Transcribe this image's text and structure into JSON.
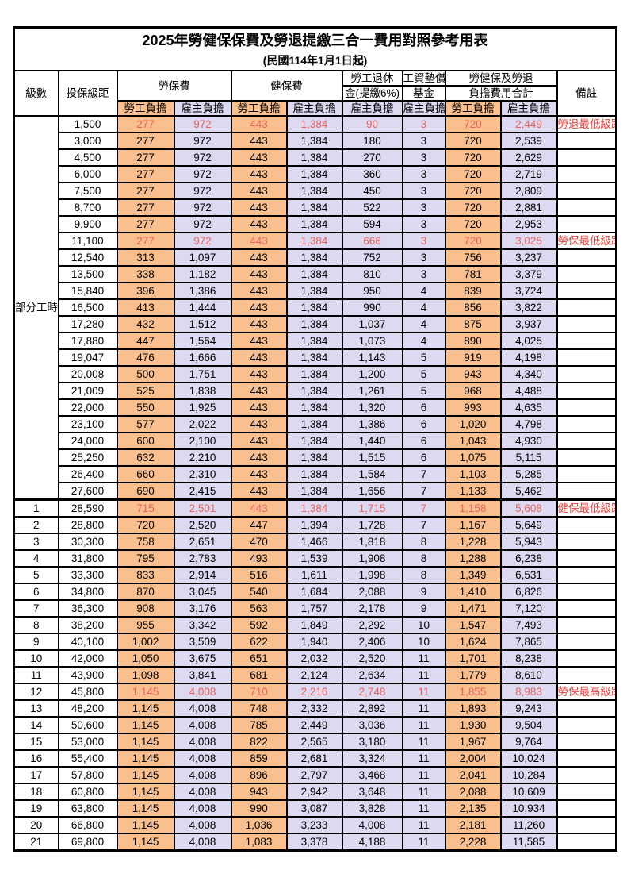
{
  "title": "2025年勞健保保費及勞退提繳三合一費用對照參考用表",
  "subtitle": "(民國114年1月1日起)",
  "colors": {
    "employee_bg": "#FABF8F",
    "employer_bg": "#DDD9F1",
    "highlight_text": "#E8625D",
    "note_text": "#E0413B"
  },
  "header": {
    "level": "級數",
    "salary": "投保級距",
    "labor_group": "勞保費",
    "health_group": "健保費",
    "pension_line1": "勞工退休",
    "pension_line2": "金(提繳6%)",
    "wage_fund_line1": "工資墊償",
    "wage_fund_line2": "基金",
    "total_line1": "勞健保及勞退",
    "total_line2": "負擔費用合計",
    "employee": "勞工負擔",
    "employer": "雇主負擔",
    "note": "備註"
  },
  "part_time_label": "部分工時",
  "rows": [
    {
      "level": "",
      "salary": "1,500",
      "labor_emp": "277",
      "labor_er": "972",
      "health_emp": "443",
      "health_er": "1,384",
      "pension_er": "90",
      "fund_er": "3",
      "total_emp": "720",
      "total_er": "2,449",
      "note": "勞退最低級距",
      "red": true,
      "bold": false
    },
    {
      "level": "",
      "salary": "3,000",
      "labor_emp": "277",
      "labor_er": "972",
      "health_emp": "443",
      "health_er": "1,384",
      "pension_er": "180",
      "fund_er": "3",
      "total_emp": "720",
      "total_er": "2,539",
      "note": "",
      "red": false,
      "bold": false
    },
    {
      "level": "",
      "salary": "4,500",
      "labor_emp": "277",
      "labor_er": "972",
      "health_emp": "443",
      "health_er": "1,384",
      "pension_er": "270",
      "fund_er": "3",
      "total_emp": "720",
      "total_er": "2,629",
      "note": "",
      "red": false,
      "bold": false
    },
    {
      "level": "",
      "salary": "6,000",
      "labor_emp": "277",
      "labor_er": "972",
      "health_emp": "443",
      "health_er": "1,384",
      "pension_er": "360",
      "fund_er": "3",
      "total_emp": "720",
      "total_er": "2,719",
      "note": "",
      "red": false,
      "bold": false
    },
    {
      "level": "",
      "salary": "7,500",
      "labor_emp": "277",
      "labor_er": "972",
      "health_emp": "443",
      "health_er": "1,384",
      "pension_er": "450",
      "fund_er": "3",
      "total_emp": "720",
      "total_er": "2,809",
      "note": "",
      "red": false,
      "bold": false
    },
    {
      "level": "",
      "salary": "8,700",
      "labor_emp": "277",
      "labor_er": "972",
      "health_emp": "443",
      "health_er": "1,384",
      "pension_er": "522",
      "fund_er": "3",
      "total_emp": "720",
      "total_er": "2,881",
      "note": "",
      "red": false,
      "bold": false
    },
    {
      "level": "",
      "salary": "9,900",
      "labor_emp": "277",
      "labor_er": "972",
      "health_emp": "443",
      "health_er": "1,384",
      "pension_er": "594",
      "fund_er": "3",
      "total_emp": "720",
      "total_er": "2,953",
      "note": "",
      "red": false,
      "bold": false
    },
    {
      "level": "",
      "salary": "11,100",
      "labor_emp": "277",
      "labor_er": "972",
      "health_emp": "443",
      "health_er": "1,384",
      "pension_er": "666",
      "fund_er": "3",
      "total_emp": "720",
      "total_er": "3,025",
      "note": "勞保最低級距",
      "red": true,
      "bold": false
    },
    {
      "level": "",
      "salary": "12,540",
      "labor_emp": "313",
      "labor_er": "1,097",
      "health_emp": "443",
      "health_er": "1,384",
      "pension_er": "752",
      "fund_er": "3",
      "total_emp": "756",
      "total_er": "3,237",
      "note": "",
      "red": false,
      "bold": false
    },
    {
      "level": "",
      "salary": "13,500",
      "labor_emp": "338",
      "labor_er": "1,182",
      "health_emp": "443",
      "health_er": "1,384",
      "pension_er": "810",
      "fund_er": "3",
      "total_emp": "781",
      "total_er": "3,379",
      "note": "",
      "red": false,
      "bold": false
    },
    {
      "level": "",
      "salary": "15,840",
      "labor_emp": "396",
      "labor_er": "1,386",
      "health_emp": "443",
      "health_er": "1,384",
      "pension_er": "950",
      "fund_er": "4",
      "total_emp": "839",
      "total_er": "3,724",
      "note": "",
      "red": false,
      "bold": false
    },
    {
      "level": "",
      "salary": "16,500",
      "labor_emp": "413",
      "labor_er": "1,444",
      "health_emp": "443",
      "health_er": "1,384",
      "pension_er": "990",
      "fund_er": "4",
      "total_emp": "856",
      "total_er": "3,822",
      "note": "",
      "red": false,
      "bold": false
    },
    {
      "level": "",
      "salary": "17,280",
      "labor_emp": "432",
      "labor_er": "1,512",
      "health_emp": "443",
      "health_er": "1,384",
      "pension_er": "1,037",
      "fund_er": "4",
      "total_emp": "875",
      "total_er": "3,937",
      "note": "",
      "red": false,
      "bold": false
    },
    {
      "level": "",
      "salary": "17,880",
      "labor_emp": "447",
      "labor_er": "1,564",
      "health_emp": "443",
      "health_er": "1,384",
      "pension_er": "1,073",
      "fund_er": "4",
      "total_emp": "890",
      "total_er": "4,025",
      "note": "",
      "red": false,
      "bold": false
    },
    {
      "level": "",
      "salary": "19,047",
      "labor_emp": "476",
      "labor_er": "1,666",
      "health_emp": "443",
      "health_er": "1,384",
      "pension_er": "1,143",
      "fund_er": "5",
      "total_emp": "919",
      "total_er": "4,198",
      "note": "",
      "red": false,
      "bold": false
    },
    {
      "level": "",
      "salary": "20,008",
      "labor_emp": "500",
      "labor_er": "1,751",
      "health_emp": "443",
      "health_er": "1,384",
      "pension_er": "1,200",
      "fund_er": "5",
      "total_emp": "943",
      "total_er": "4,340",
      "note": "",
      "red": false,
      "bold": false
    },
    {
      "level": "",
      "salary": "21,009",
      "labor_emp": "525",
      "labor_er": "1,838",
      "health_emp": "443",
      "health_er": "1,384",
      "pension_er": "1,261",
      "fund_er": "5",
      "total_emp": "968",
      "total_er": "4,488",
      "note": "",
      "red": false,
      "bold": false
    },
    {
      "level": "",
      "salary": "22,000",
      "labor_emp": "550",
      "labor_er": "1,925",
      "health_emp": "443",
      "health_er": "1,384",
      "pension_er": "1,320",
      "fund_er": "6",
      "total_emp": "993",
      "total_er": "4,635",
      "note": "",
      "red": false,
      "bold": false
    },
    {
      "level": "",
      "salary": "23,100",
      "labor_emp": "577",
      "labor_er": "2,022",
      "health_emp": "443",
      "health_er": "1,384",
      "pension_er": "1,386",
      "fund_er": "6",
      "total_emp": "1,020",
      "total_er": "4,798",
      "note": "",
      "red": false,
      "bold": false
    },
    {
      "level": "",
      "salary": "24,000",
      "labor_emp": "600",
      "labor_er": "2,100",
      "health_emp": "443",
      "health_er": "1,384",
      "pension_er": "1,440",
      "fund_er": "6",
      "total_emp": "1,043",
      "total_er": "4,930",
      "note": "",
      "red": false,
      "bold": false
    },
    {
      "level": "",
      "salary": "25,250",
      "labor_emp": "632",
      "labor_er": "2,210",
      "health_emp": "443",
      "health_er": "1,384",
      "pension_er": "1,515",
      "fund_er": "6",
      "total_emp": "1,075",
      "total_er": "5,115",
      "note": "",
      "red": false,
      "bold": false
    },
    {
      "level": "",
      "salary": "26,400",
      "labor_emp": "660",
      "labor_er": "2,310",
      "health_emp": "443",
      "health_er": "1,384",
      "pension_er": "1,584",
      "fund_er": "7",
      "total_emp": "1,103",
      "total_er": "5,285",
      "note": "",
      "red": false,
      "bold": false
    },
    {
      "level": "",
      "salary": "27,600",
      "labor_emp": "690",
      "labor_er": "2,415",
      "health_emp": "443",
      "health_er": "1,384",
      "pension_er": "1,656",
      "fund_er": "7",
      "total_emp": "1,133",
      "total_er": "5,462",
      "note": "",
      "red": false,
      "bold": false
    },
    {
      "level": "1",
      "salary": "28,590",
      "labor_emp": "715",
      "labor_er": "2,501",
      "health_emp": "443",
      "health_er": "1,384",
      "pension_er": "1,715",
      "fund_er": "7",
      "total_emp": "1,158",
      "total_er": "5,608",
      "note": "健保最低級距",
      "red": true,
      "bold": true
    },
    {
      "level": "2",
      "salary": "28,800",
      "labor_emp": "720",
      "labor_er": "2,520",
      "health_emp": "447",
      "health_er": "1,394",
      "pension_er": "1,728",
      "fund_er": "7",
      "total_emp": "1,167",
      "total_er": "5,649",
      "note": "",
      "red": false,
      "bold": false
    },
    {
      "level": "3",
      "salary": "30,300",
      "labor_emp": "758",
      "labor_er": "2,651",
      "health_emp": "470",
      "health_er": "1,466",
      "pension_er": "1,818",
      "fund_er": "8",
      "total_emp": "1,228",
      "total_er": "5,943",
      "note": "",
      "red": false,
      "bold": false
    },
    {
      "level": "4",
      "salary": "31,800",
      "labor_emp": "795",
      "labor_er": "2,783",
      "health_emp": "493",
      "health_er": "1,539",
      "pension_er": "1,908",
      "fund_er": "8",
      "total_emp": "1,288",
      "total_er": "6,238",
      "note": "",
      "red": false,
      "bold": false
    },
    {
      "level": "5",
      "salary": "33,300",
      "labor_emp": "833",
      "labor_er": "2,914",
      "health_emp": "516",
      "health_er": "1,611",
      "pension_er": "1,998",
      "fund_er": "8",
      "total_emp": "1,349",
      "total_er": "6,531",
      "note": "",
      "red": false,
      "bold": false
    },
    {
      "level": "6",
      "salary": "34,800",
      "labor_emp": "870",
      "labor_er": "3,045",
      "health_emp": "540",
      "health_er": "1,684",
      "pension_er": "2,088",
      "fund_er": "9",
      "total_emp": "1,410",
      "total_er": "6,826",
      "note": "",
      "red": false,
      "bold": false
    },
    {
      "level": "7",
      "salary": "36,300",
      "labor_emp": "908",
      "labor_er": "3,176",
      "health_emp": "563",
      "health_er": "1,757",
      "pension_er": "2,178",
      "fund_er": "9",
      "total_emp": "1,471",
      "total_er": "7,120",
      "note": "",
      "red": false,
      "bold": false
    },
    {
      "level": "8",
      "salary": "38,200",
      "labor_emp": "955",
      "labor_er": "3,342",
      "health_emp": "592",
      "health_er": "1,849",
      "pension_er": "2,292",
      "fund_er": "10",
      "total_emp": "1,547",
      "total_er": "7,493",
      "note": "",
      "red": false,
      "bold": false
    },
    {
      "level": "9",
      "salary": "40,100",
      "labor_emp": "1,002",
      "labor_er": "3,509",
      "health_emp": "622",
      "health_er": "1,940",
      "pension_er": "2,406",
      "fund_er": "10",
      "total_emp": "1,624",
      "total_er": "7,865",
      "note": "",
      "red": false,
      "bold": false
    },
    {
      "level": "10",
      "salary": "42,000",
      "labor_emp": "1,050",
      "labor_er": "3,675",
      "health_emp": "651",
      "health_er": "2,032",
      "pension_er": "2,520",
      "fund_er": "11",
      "total_emp": "1,701",
      "total_er": "8,238",
      "note": "",
      "red": false,
      "bold": false
    },
    {
      "level": "11",
      "salary": "43,900",
      "labor_emp": "1,098",
      "labor_er": "3,841",
      "health_emp": "681",
      "health_er": "2,124",
      "pension_er": "2,634",
      "fund_er": "11",
      "total_emp": "1,779",
      "total_er": "8,610",
      "note": "",
      "red": false,
      "bold": false
    },
    {
      "level": "12",
      "salary": "45,800",
      "labor_emp": "1,145",
      "labor_er": "4,008",
      "health_emp": "710",
      "health_er": "2,216",
      "pension_er": "2,748",
      "fund_er": "11",
      "total_emp": "1,855",
      "total_er": "8,983",
      "note": "勞保最高級距",
      "red": true,
      "bold": true
    },
    {
      "level": "13",
      "salary": "48,200",
      "labor_emp": "1,145",
      "labor_er": "4,008",
      "health_emp": "748",
      "health_er": "2,332",
      "pension_er": "2,892",
      "fund_er": "11",
      "total_emp": "1,893",
      "total_er": "9,243",
      "note": "",
      "red": false,
      "bold": false
    },
    {
      "level": "14",
      "salary": "50,600",
      "labor_emp": "1,145",
      "labor_er": "4,008",
      "health_emp": "785",
      "health_er": "2,449",
      "pension_er": "3,036",
      "fund_er": "11",
      "total_emp": "1,930",
      "total_er": "9,504",
      "note": "",
      "red": false,
      "bold": false
    },
    {
      "level": "15",
      "salary": "53,000",
      "labor_emp": "1,145",
      "labor_er": "4,008",
      "health_emp": "822",
      "health_er": "2,565",
      "pension_er": "3,180",
      "fund_er": "11",
      "total_emp": "1,967",
      "total_er": "9,764",
      "note": "",
      "red": false,
      "bold": false
    },
    {
      "level": "16",
      "salary": "55,400",
      "labor_emp": "1,145",
      "labor_er": "4,008",
      "health_emp": "859",
      "health_er": "2,681",
      "pension_er": "3,324",
      "fund_er": "11",
      "total_emp": "2,004",
      "total_er": "10,024",
      "note": "",
      "red": false,
      "bold": false
    },
    {
      "level": "17",
      "salary": "57,800",
      "labor_emp": "1,145",
      "labor_er": "4,008",
      "health_emp": "896",
      "health_er": "2,797",
      "pension_er": "3,468",
      "fund_er": "11",
      "total_emp": "2,041",
      "total_er": "10,284",
      "note": "",
      "red": false,
      "bold": false
    },
    {
      "level": "18",
      "salary": "60,800",
      "labor_emp": "1,145",
      "labor_er": "4,008",
      "health_emp": "943",
      "health_er": "2,942",
      "pension_er": "3,648",
      "fund_er": "11",
      "total_emp": "2,088",
      "total_er": "10,609",
      "note": "",
      "red": false,
      "bold": false
    },
    {
      "level": "19",
      "salary": "63,800",
      "labor_emp": "1,145",
      "labor_er": "4,008",
      "health_emp": "990",
      "health_er": "3,087",
      "pension_er": "3,828",
      "fund_er": "11",
      "total_emp": "2,135",
      "total_er": "10,934",
      "note": "",
      "red": false,
      "bold": false
    },
    {
      "level": "20",
      "salary": "66,800",
      "labor_emp": "1,145",
      "labor_er": "4,008",
      "health_emp": "1,036",
      "health_er": "3,233",
      "pension_er": "4,008",
      "fund_er": "11",
      "total_emp": "2,181",
      "total_er": "11,260",
      "note": "",
      "red": false,
      "bold": false
    },
    {
      "level": "21",
      "salary": "69,800",
      "labor_emp": "1,145",
      "labor_er": "4,008",
      "health_emp": "1,083",
      "health_er": "3,378",
      "pension_er": "4,188",
      "fund_er": "11",
      "total_emp": "2,228",
      "total_er": "11,585",
      "note": "",
      "red": false,
      "bold": false
    }
  ]
}
